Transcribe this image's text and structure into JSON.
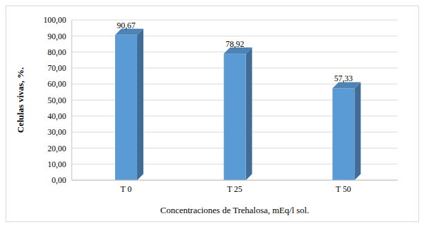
{
  "chart_data": {
    "type": "bar",
    "categories": [
      "T 0",
      "T 25",
      "T 50"
    ],
    "values": [
      90.67,
      78.92,
      57.33
    ],
    "value_labels": [
      "90,67",
      "78,92",
      "57,33"
    ],
    "data_labels": true,
    "color": "#5b9bd5",
    "x_label": "Concentraciones de Trehalosa, mEq/l sol.",
    "y_label": "Celulas vivas, %.",
    "ylim": [
      0,
      100
    ],
    "yticks": [
      {
        "value": 0,
        "label": "0,00"
      },
      {
        "value": 10,
        "label": "10,00"
      },
      {
        "value": 20,
        "label": "20,00"
      },
      {
        "value": 30,
        "label": "30,00"
      },
      {
        "value": 40,
        "label": "40,00"
      },
      {
        "value": 50,
        "label": "50,00"
      },
      {
        "value": 60,
        "label": "60,00"
      },
      {
        "value": 70,
        "label": "70,00"
      },
      {
        "value": 80,
        "label": "80,00"
      },
      {
        "value": 90,
        "label": "90,00"
      },
      {
        "value": 100,
        "label": "100,00"
      }
    ],
    "grid": true
  }
}
